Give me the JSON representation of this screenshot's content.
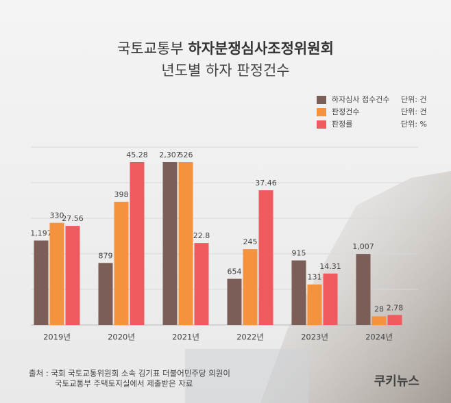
{
  "chart_data": {
    "type": "bar",
    "title": [
      "국토교통부 ",
      "하자분쟁심사조정위원회"
    ],
    "subtitle": "년도별 하자 판정건수",
    "categories": [
      "2019년",
      "2020년",
      "2021년",
      "2022년",
      "2023년",
      "2024년"
    ],
    "series": [
      {
        "name": "하자심사 접수건수",
        "unit": "단위: 건",
        "color": "#7b5e57",
        "values": [
          1197,
          879,
          2307,
          654,
          915,
          1007
        ],
        "value_labels": [
          "1,197",
          "879",
          "2,307",
          "654",
          "915",
          "1,007"
        ]
      },
      {
        "name": "판정건수",
        "unit": "단위: 건",
        "color": "#f5923e",
        "values": [
          330,
          398,
          526,
          245,
          131,
          28
        ]
      },
      {
        "name": "판정률",
        "unit": "단위: %",
        "color": "#ef5a5f",
        "values": [
          27.56,
          45.28,
          22.8,
          37.46,
          14.31,
          2.78
        ]
      }
    ],
    "source": [
      "출처 : 국회 국토교통위원회 소속 김기표 더불어민주당 의원이",
      "국토교통부 주택토지실에서 제출받은 자료"
    ],
    "logo": "쿠키뉴스"
  }
}
